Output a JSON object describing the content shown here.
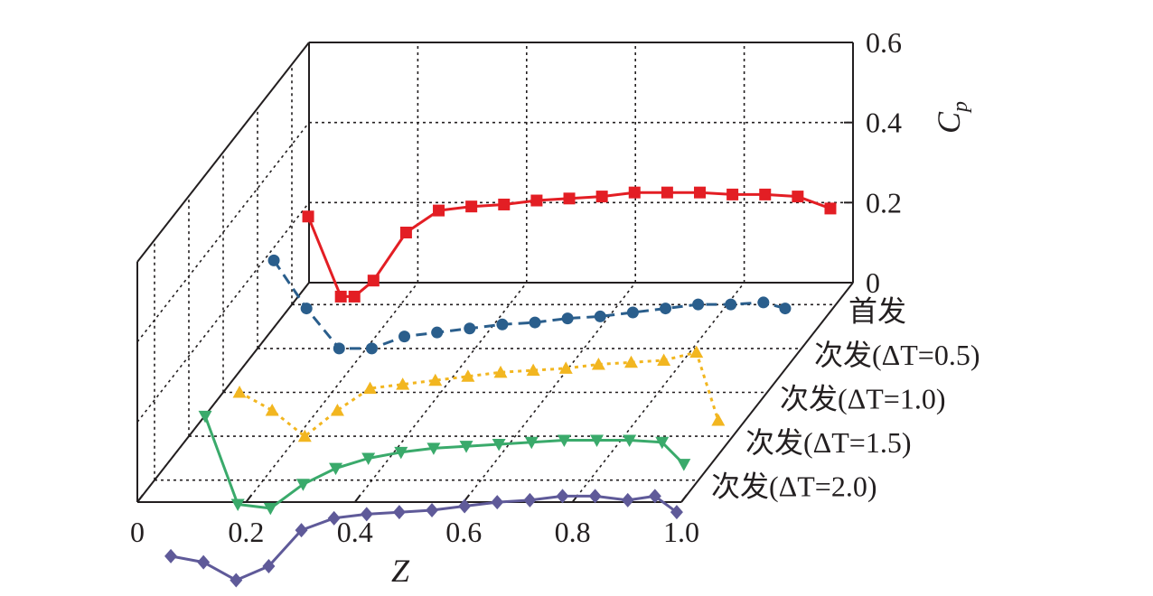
{
  "chart_data": {
    "type": "line",
    "subtype": "3d-waterfall",
    "title": "",
    "xlabel": "Z",
    "zlabel": "Cp",
    "x_ticks": [
      "0",
      "0.2",
      "0.4",
      "0.6",
      "0.8",
      "1.0"
    ],
    "xlim": [
      0,
      1.0
    ],
    "z_ticks": [
      "0",
      "0.2",
      "0.4",
      "0.6"
    ],
    "zlim": [
      0,
      0.6
    ],
    "grid": true,
    "categories": [
      "首发",
      "次发(ΔT=0.5)",
      "次发(ΔT=1.0)",
      "次发(ΔT=1.5)",
      "次发(ΔT=2.0)"
    ],
    "series": [
      {
        "name": "首发",
        "color": "#e31e24",
        "marker": "square",
        "line": "solid",
        "x": [
          0.03,
          0.09,
          0.115,
          0.15,
          0.21,
          0.27,
          0.33,
          0.39,
          0.45,
          0.51,
          0.57,
          0.63,
          0.69,
          0.75,
          0.81,
          0.87,
          0.93,
          0.99
        ],
        "y": [
          0.22,
          0.02,
          0.02,
          0.06,
          0.18,
          0.235,
          0.245,
          0.25,
          0.26,
          0.265,
          0.27,
          0.28,
          0.28,
          0.28,
          0.275,
          0.275,
          0.27,
          0.24
        ]
      },
      {
        "name": "次发(ΔT=0.5)",
        "color": "#2a5e8c",
        "marker": "circle",
        "line": "dashed",
        "x": [
          0.03,
          0.09,
          0.15,
          0.21,
          0.27,
          0.33,
          0.39,
          0.45,
          0.51,
          0.57,
          0.63,
          0.69,
          0.75,
          0.81,
          0.87,
          0.93,
          0.97
        ],
        "y": [
          0.22,
          0.1,
          0.0,
          0.0,
          0.03,
          0.04,
          0.05,
          0.06,
          0.065,
          0.075,
          0.08,
          0.09,
          0.1,
          0.11,
          0.11,
          0.115,
          0.1
        ]
      },
      {
        "name": "次发(ΔT=1.0)",
        "color": "#f2b620",
        "marker": "triangle-up",
        "line": "dotted",
        "x": [
          0.03,
          0.09,
          0.15,
          0.21,
          0.27,
          0.33,
          0.39,
          0.45,
          0.51,
          0.57,
          0.63,
          0.69,
          0.75,
          0.81,
          0.87,
          0.91
        ],
        "y": [
          0.0,
          -0.045,
          -0.11,
          -0.045,
          0.01,
          0.02,
          0.03,
          0.04,
          0.05,
          0.055,
          0.06,
          0.07,
          0.075,
          0.08,
          0.1,
          -0.07
        ]
      },
      {
        "name": "次发(ΔT=1.5)",
        "color": "#3aaa6b",
        "marker": "triangle-down",
        "line": "solid",
        "x": [
          0.03,
          0.09,
          0.15,
          0.21,
          0.27,
          0.33,
          0.39,
          0.45,
          0.51,
          0.57,
          0.63,
          0.69,
          0.75,
          0.81,
          0.87,
          0.91
        ],
        "y": [
          0.05,
          -0.17,
          -0.18,
          -0.12,
          -0.08,
          -0.055,
          -0.04,
          -0.03,
          -0.025,
          -0.02,
          -0.015,
          -0.01,
          -0.01,
          -0.01,
          -0.015,
          -0.07
        ]
      },
      {
        "name": "次发(ΔT=2.0)",
        "color": "#5f5a99",
        "marker": "diamond",
        "line": "solid",
        "x": [
          0.03,
          0.09,
          0.15,
          0.21,
          0.27,
          0.33,
          0.39,
          0.45,
          0.51,
          0.57,
          0.63,
          0.69,
          0.75,
          0.81,
          0.87,
          0.92,
          0.96
        ],
        "y": [
          -0.19,
          -0.205,
          -0.25,
          -0.215,
          -0.125,
          -0.095,
          -0.085,
          -0.08,
          -0.075,
          -0.065,
          -0.055,
          -0.05,
          -0.04,
          -0.04,
          -0.05,
          -0.04,
          -0.08
        ]
      }
    ]
  }
}
